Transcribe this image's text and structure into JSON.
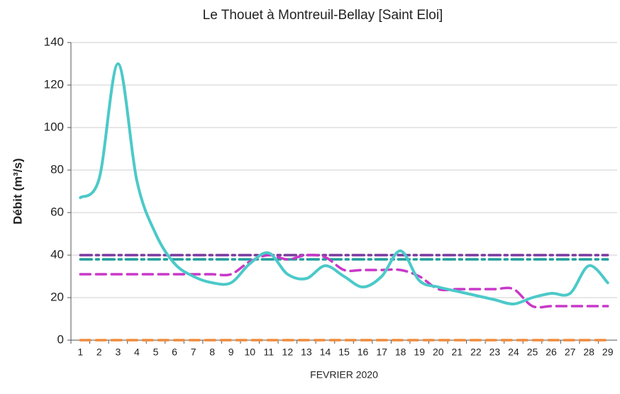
{
  "chart_data": {
    "type": "line",
    "title": "Le Thouet à Montreuil-Bellay [Saint Eloi]",
    "ylabel": "Débit (m³/s)",
    "xlabel": "FEVRIER 2020",
    "categories": [
      "1",
      "2",
      "3",
      "4",
      "5",
      "6",
      "7",
      "8",
      "9",
      "10",
      "11",
      "12",
      "13",
      "14",
      "15",
      "16",
      "17",
      "18",
      "19",
      "20",
      "21",
      "22",
      "23",
      "24",
      "25",
      "26",
      "27",
      "28",
      "29"
    ],
    "series": [
      {
        "color": "#f08a3c",
        "style": "dashed",
        "values": [
          0,
          0,
          0,
          0,
          0,
          0,
          0,
          0,
          0,
          0,
          0,
          0,
          0,
          0,
          0,
          0,
          0,
          0,
          0,
          0,
          0,
          0,
          0,
          0,
          0,
          0,
          0,
          0,
          0
        ]
      },
      {
        "color": "#7a3a9e",
        "style": "dashdot",
        "values": [
          40,
          40,
          40,
          40,
          40,
          40,
          40,
          40,
          40,
          40,
          40,
          40,
          40,
          40,
          40,
          40,
          40,
          40,
          40,
          40,
          40,
          40,
          40,
          40,
          40,
          40,
          40,
          40,
          40
        ]
      },
      {
        "color": "#1f9e9c",
        "style": "dashdot",
        "values": [
          38,
          38,
          38,
          38,
          38,
          38,
          38,
          38,
          38,
          38,
          38,
          38,
          38,
          38,
          38,
          38,
          38,
          38,
          38,
          38,
          38,
          38,
          38,
          38,
          38,
          38,
          38,
          38,
          38
        ]
      },
      {
        "color": "#c838c8",
        "style": "dashed",
        "values": [
          31,
          31,
          31,
          31,
          31,
          31,
          31,
          31,
          31,
          37,
          40,
          38,
          40,
          39,
          33,
          33,
          33,
          33,
          30,
          24,
          24,
          24,
          24,
          24,
          16,
          16,
          16,
          16,
          16
        ]
      },
      {
        "color": "#4cc9c9",
        "style": "solid",
        "values": [
          67,
          76,
          130,
          75,
          50,
          36,
          30,
          27,
          27,
          36,
          41,
          31,
          29,
          35,
          30,
          25,
          30,
          42,
          28,
          25,
          23,
          21,
          19,
          17,
          20,
          22,
          22,
          35,
          27
        ]
      }
    ],
    "ylim": [
      0,
      140
    ],
    "yticks": [
      0,
      20,
      40,
      60,
      80,
      100,
      120,
      140
    ],
    "grid": true
  }
}
